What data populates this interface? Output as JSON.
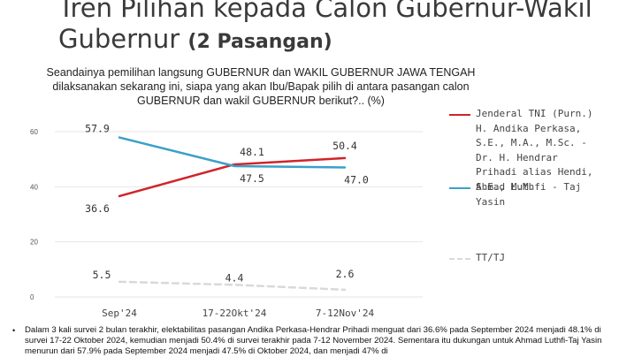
{
  "title": {
    "line1": "Tren Pilihan kepada Calon Gubernur-Wakil",
    "line2_plain": "Gubernur ",
    "line2_bold": "(2 Pasangan)"
  },
  "question": "Seandainya pemilihan langsung GUBERNUR dan WAKIL GUBERNUR JAWA TENGAH dilaksanakan sekarang ini, siapa yang akan Ibu/Bapak pilih di antara pasangan calon GUBERNUR dan wakil GUBERNUR berikut?.. (%)",
  "legend": [
    {
      "label": "Jenderal TNI (Purn.) H. Andika Perkasa, S.E., M.A., M.Sc. - Dr. H. Hendrar Prihadi alias Hendi, S.E., M.M.",
      "color": "#d2232a",
      "style": "solid"
    },
    {
      "label": "Ahmad Luthfi - Taj Yasin",
      "color": "#3aa0c9",
      "style": "solid"
    },
    {
      "label": "TT/TJ",
      "color": "#d9d9d9",
      "style": "dashed"
    }
  ],
  "chart_data": {
    "type": "line",
    "categories": [
      "Sep'24",
      "17-22Okt'24",
      "7-12Nov'24"
    ],
    "series": [
      {
        "name": "Jenderal TNI (Purn.) H. Andika Perkasa, S.E., M.A., M.Sc. - Dr. H. Hendrar Prihadi alias Hendi, S.E., M.M.",
        "values": [
          36.6,
          48.1,
          50.4
        ],
        "color": "#d2232a",
        "dashed": false
      },
      {
        "name": "Ahmad Luthfi - Taj Yasin",
        "values": [
          57.9,
          47.5,
          47.0
        ],
        "color": "#3aa0c9",
        "dashed": false
      },
      {
        "name": "TT/TJ",
        "values": [
          5.5,
          4.4,
          2.6
        ],
        "color": "#d9d9d9",
        "dashed": true
      }
    ],
    "value_labels": [
      [
        "36.6",
        "48.1",
        "50.4"
      ],
      [
        "57.9",
        "47.5",
        "47.0"
      ],
      [
        "5.5",
        "4.4",
        "2.6"
      ]
    ],
    "yticks": [
      "0",
      "20",
      "40",
      "60"
    ],
    "ylim": [
      0,
      62
    ],
    "grid": true,
    "legend_position": "right"
  },
  "notes": "Dalam 3 kali survei 2 bulan terakhir, elektabilitas pasangan Andika Perkasa-Hendrar Prihadi menguat dari 36.6% pada September 2024 menjadi 48.1% di survei 17-22 Oktober 2024, kemudian menjadi 50.4% di survei terakhir pada 7-12 November 2024.  Sementara itu dukungan untuk Ahmad Luthfi-Taj Yasin menurun dari 57.9% pada September 2024 menjadi 47.5% di Oktober 2024, dan menjadi 47% di"
}
